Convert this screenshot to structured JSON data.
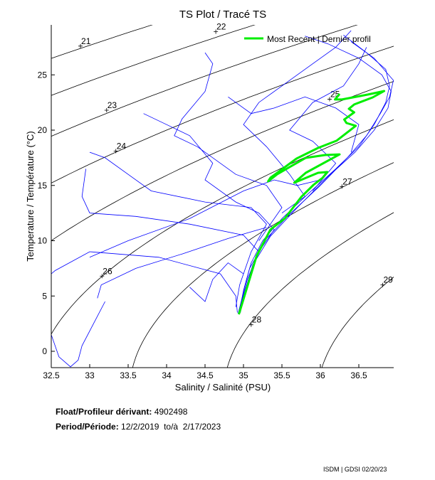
{
  "chart_data": {
    "type": "line",
    "title": "TS Plot / Tracé TS",
    "xlabel": "Salinity / Salinité (PSU)",
    "ylabel": "Temperature / Température (°C)",
    "xlim": [
      32.5,
      36.95
    ],
    "ylim": [
      -1.5,
      29.5
    ],
    "xticks": [
      "32.5",
      "33",
      "33.5",
      "34",
      "34.5",
      "35",
      "35.5",
      "36",
      "36.5"
    ],
    "yticks": [
      "0",
      "5",
      "10",
      "15",
      "20",
      "25"
    ],
    "grid": false,
    "legend": {
      "placement": "top-right",
      "label": "Most Recent | Dernier profil"
    },
    "colors": {
      "profiles": "#0000ff",
      "recent": "#00ee00",
      "isopycnal": "#000000"
    },
    "isopycnals": {
      "levels": [
        21,
        22,
        23,
        24,
        25,
        26,
        27,
        28,
        29
      ],
      "labels": [
        {
          "text": "21",
          "S": 32.88,
          "T": 27.6
        },
        {
          "text": "22",
          "S": 34.64,
          "T": 28.9
        },
        {
          "text": "23",
          "S": 33.22,
          "T": 21.8
        },
        {
          "text": "24",
          "S": 33.34,
          "T": 18.1
        },
        {
          "text": "25",
          "S": 36.12,
          "T": 22.8
        },
        {
          "text": "26",
          "S": 33.16,
          "T": 6.8
        },
        {
          "text": "27",
          "S": 36.28,
          "T": 14.9
        },
        {
          "text": "28",
          "S": 35.1,
          "T": 2.4
        },
        {
          "text": "29",
          "S": 36.81,
          "T": 6.0
        }
      ]
    },
    "profiles": [
      [
        [
          34.93,
          3.4
        ],
        [
          34.97,
          4.5
        ],
        [
          35.02,
          6
        ],
        [
          35.1,
          8
        ],
        [
          35.25,
          10
        ],
        [
          35.5,
          12
        ],
        [
          35.85,
          14.3
        ],
        [
          36.2,
          16.5
        ],
        [
          36.5,
          18.5
        ],
        [
          36.7,
          20.5
        ],
        [
          36.85,
          22.5
        ],
        [
          36.9,
          24
        ],
        [
          36.85,
          25.5
        ],
        [
          36.6,
          27
        ],
        [
          36.3,
          28.6
        ]
      ],
      [
        [
          34.95,
          3.6
        ],
        [
          35.0,
          5.5
        ],
        [
          35.08,
          7.5
        ],
        [
          35.3,
          10.2
        ],
        [
          35.6,
          12.4
        ],
        [
          36.0,
          15
        ],
        [
          36.35,
          17.5
        ],
        [
          36.6,
          19.5
        ],
        [
          36.78,
          21.5
        ],
        [
          36.9,
          23
        ],
        [
          36.95,
          24.5
        ],
        [
          36.7,
          26.5
        ],
        [
          36.4,
          28
        ]
      ],
      [
        [
          34.95,
          3.8
        ],
        [
          35.05,
          6.5
        ],
        [
          35.2,
          9
        ],
        [
          35.0,
          10.5
        ],
        [
          34.3,
          11.5
        ],
        [
          33.6,
          12.2
        ],
        [
          33.0,
          12.5
        ],
        [
          32.9,
          14
        ],
        [
          32.95,
          16.5
        ]
      ],
      [
        [
          34.9,
          4
        ],
        [
          34.95,
          6
        ],
        [
          35.1,
          9
        ],
        [
          35.3,
          11.5
        ],
        [
          35.1,
          13
        ],
        [
          34.5,
          13.5
        ],
        [
          33.8,
          14.5
        ],
        [
          33.5,
          16
        ],
        [
          33.2,
          17.5
        ],
        [
          33.0,
          18
        ]
      ],
      [
        [
          34.92,
          3.5
        ],
        [
          34.9,
          5
        ],
        [
          34.7,
          7
        ],
        [
          33.9,
          8.5
        ],
        [
          33.0,
          9
        ],
        [
          32.55,
          7.3
        ],
        [
          32.5,
          7
        ]
      ],
      [
        [
          33.2,
          4.5
        ],
        [
          33.05,
          2.5
        ],
        [
          32.9,
          0.5
        ],
        [
          32.85,
          -0.8
        ],
        [
          32.75,
          -1.4
        ],
        [
          32.6,
          -0.5
        ],
        [
          32.5,
          1.5
        ]
      ],
      [
        [
          35.0,
          5
        ],
        [
          35.2,
          9
        ],
        [
          35.4,
          11
        ],
        [
          35.2,
          12.5
        ],
        [
          34.9,
          13.5
        ],
        [
          34.5,
          15.5
        ],
        [
          34.6,
          17
        ],
        [
          34.3,
          19.5
        ],
        [
          34.0,
          20.5
        ],
        [
          33.7,
          21.5
        ]
      ],
      [
        [
          35.5,
          12.5
        ],
        [
          35.8,
          14
        ],
        [
          35.6,
          16
        ],
        [
          35.3,
          18.5
        ],
        [
          35.0,
          20.5
        ],
        [
          35.2,
          22.5
        ],
        [
          35.5,
          24
        ],
        [
          35.9,
          26
        ],
        [
          36.2,
          27.5
        ],
        [
          36.4,
          29
        ]
      ],
      [
        [
          35.2,
          10
        ],
        [
          35.5,
          13
        ],
        [
          35.3,
          15
        ],
        [
          34.9,
          16
        ],
        [
          34.4,
          18.5
        ],
        [
          34.1,
          19.5
        ],
        [
          34.2,
          21
        ],
        [
          34.5,
          23.5
        ],
        [
          34.6,
          26
        ],
        [
          34.5,
          27
        ]
      ],
      [
        [
          35.9,
          14.5
        ],
        [
          36.2,
          17
        ],
        [
          35.9,
          19
        ],
        [
          35.6,
          20
        ],
        [
          35.9,
          22.5
        ],
        [
          36.3,
          24
        ],
        [
          36.5,
          26
        ],
        [
          36.6,
          27.5
        ]
      ],
      [
        [
          33.1,
          4.8
        ],
        [
          33.15,
          6
        ],
        [
          33.6,
          7.5
        ],
        [
          34.2,
          8.8
        ],
        [
          34.8,
          10.2
        ],
        [
          35.3,
          11.2
        ]
      ],
      [
        [
          35.0,
          7
        ],
        [
          34.8,
          8
        ],
        [
          34.6,
          6.5
        ],
        [
          34.5,
          4.5
        ],
        [
          34.3,
          5.8
        ]
      ],
      [
        [
          33.0,
          8.5
        ],
        [
          33.5,
          10
        ],
        [
          34.3,
          12
        ],
        [
          35.0,
          14.5
        ],
        [
          35.4,
          15.5
        ],
        [
          35.7,
          15
        ],
        [
          36.0,
          15.5
        ]
      ],
      [
        [
          36.4,
          18
        ],
        [
          36.5,
          20.5
        ],
        [
          36.2,
          22
        ],
        [
          35.8,
          23
        ],
        [
          35.4,
          22
        ],
        [
          35.1,
          21.5
        ],
        [
          34.8,
          23
        ]
      ],
      [
        [
          34.96,
          3.5
        ],
        [
          35.0,
          5
        ],
        [
          35.12,
          7.8
        ],
        [
          35.35,
          10.4
        ],
        [
          35.7,
          13
        ],
        [
          36.1,
          15.8
        ],
        [
          36.45,
          18
        ],
        [
          36.7,
          20
        ],
        [
          36.88,
          22
        ],
        [
          36.92,
          23.5
        ],
        [
          36.8,
          25
        ],
        [
          36.5,
          26.5
        ],
        [
          36.1,
          27.8
        ],
        [
          35.8,
          28.5
        ]
      ]
    ],
    "recent_profile": [
      [
        34.94,
        3.34
      ],
      [
        35.05,
        5.85
      ],
      [
        35.17,
        8.62
      ],
      [
        35.35,
        11.0
      ],
      [
        35.54,
        12.03
      ],
      [
        35.75,
        13.95
      ],
      [
        35.91,
        15.05
      ],
      [
        36.03,
        15.69
      ],
      [
        36.09,
        16.21
      ],
      [
        35.97,
        16.14
      ],
      [
        35.66,
        15.24
      ],
      [
        35.81,
        16.14
      ],
      [
        36.25,
        17.81
      ],
      [
        36.06,
        17.75
      ],
      [
        35.81,
        17.49
      ],
      [
        35.63,
        16.78
      ],
      [
        35.44,
        16.01
      ],
      [
        35.32,
        15.37
      ],
      [
        35.35,
        15.69
      ],
      [
        35.69,
        17.43
      ],
      [
        35.97,
        18.39
      ],
      [
        36.21,
        19.04
      ],
      [
        36.46,
        20.39
      ],
      [
        36.34,
        20.64
      ],
      [
        36.31,
        20.96
      ],
      [
        36.44,
        21.61
      ],
      [
        36.37,
        21.93
      ],
      [
        36.44,
        22.32
      ],
      [
        36.68,
        22.96
      ],
      [
        36.83,
        23.54
      ],
      [
        36.62,
        23.22
      ],
      [
        36.28,
        22.77
      ],
      [
        36.19,
        22.77
      ],
      [
        36.25,
        23.28
      ]
    ]
  },
  "info": {
    "float_label": "Float/Profileur dérivant:",
    "float_value": "4902498",
    "period_label": "Period/Période:",
    "period_value": "12/2/2019  to/à  2/17/2023"
  },
  "footer": "ISDM | GDSI  02/20/23"
}
